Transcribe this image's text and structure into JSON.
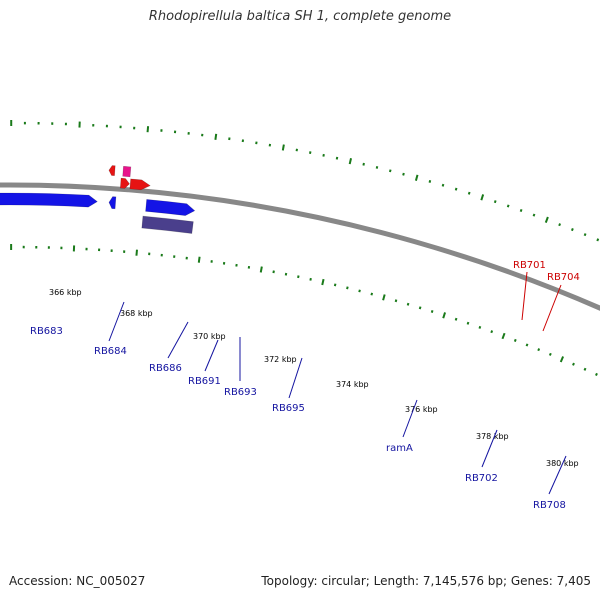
{
  "title": "Rhodopirellula baltica SH 1, complete genome",
  "accession": "Accession: NC_005027",
  "summary": "Topology: circular; Length: 7,145,576 bp; Genes: 7,405",
  "colors": {
    "backbone": "#888888",
    "ticks": "#1a7a1a",
    "blue_gene": "#1414e6",
    "dark_gene": "#4a3f8c",
    "cyan_gene": "#20c8c8",
    "pink_gene": "#e8148c",
    "red_gene": "#e61414",
    "blue_label": "#1414a0",
    "red_label": "#cc0000"
  },
  "ticks": [
    {
      "label": "366 kbp"
    },
    {
      "label": "368 kbp"
    },
    {
      "label": "370 kbp"
    },
    {
      "label": "372 kbp"
    },
    {
      "label": "374 kbp"
    },
    {
      "label": "376 kbp"
    },
    {
      "label": "378 kbp"
    },
    {
      "label": "380 kbp"
    }
  ],
  "gene_labels": [
    {
      "name": "RB683",
      "color": "blue"
    },
    {
      "name": "RB684",
      "color": "blue"
    },
    {
      "name": "RB686",
      "color": "blue"
    },
    {
      "name": "RB691",
      "color": "blue"
    },
    {
      "name": "RB693",
      "color": "blue"
    },
    {
      "name": "RB695",
      "color": "blue"
    },
    {
      "name": "ramA",
      "color": "blue"
    },
    {
      "name": "RB702",
      "color": "blue"
    },
    {
      "name": "RB708",
      "color": "blue"
    },
    {
      "name": "RB701",
      "color": "red"
    },
    {
      "name": "RB704",
      "color": "red"
    }
  ]
}
